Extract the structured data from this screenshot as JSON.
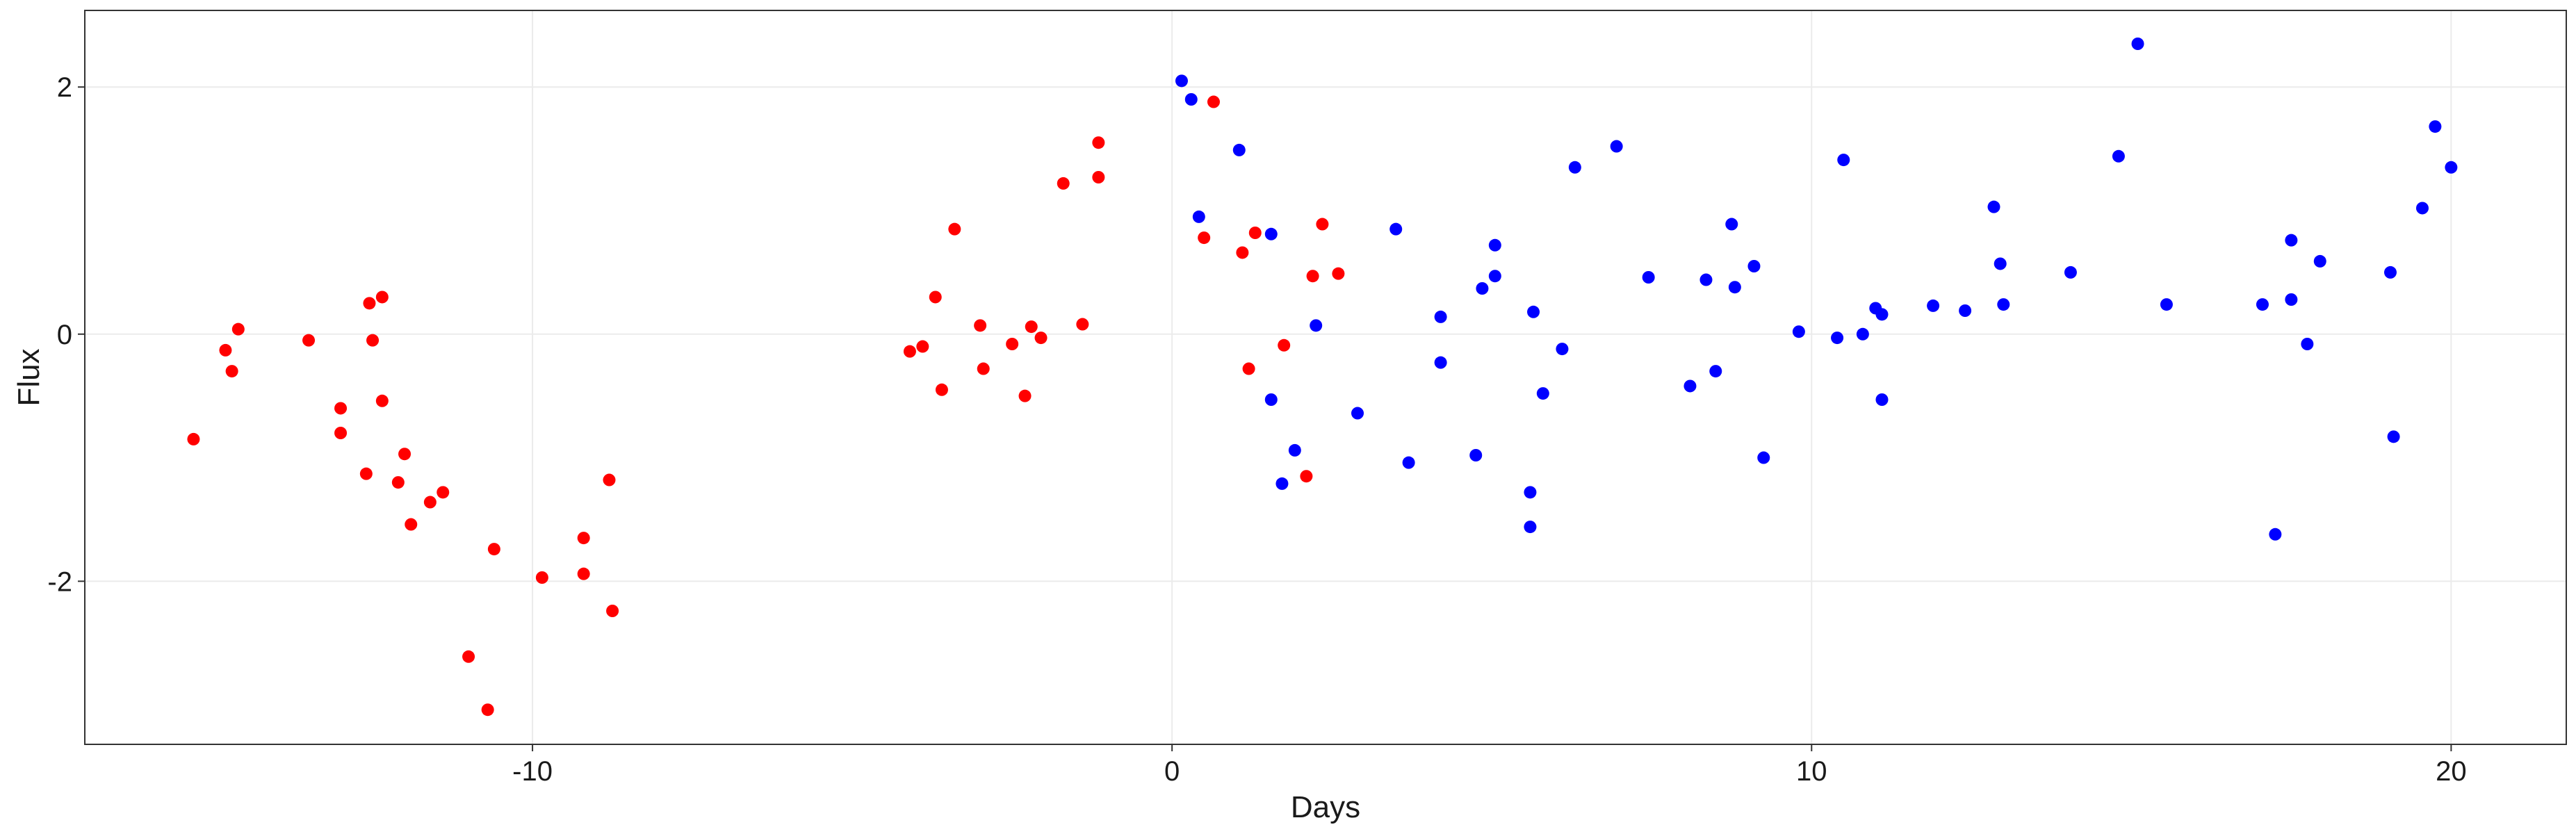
{
  "chart_data": {
    "type": "scatter",
    "title": "",
    "xlabel": "Days",
    "ylabel": "Flux",
    "xlim": [
      -17.0,
      21.8
    ],
    "ylim": [
      -3.32,
      2.62
    ],
    "x_ticks": [
      -10,
      0,
      10,
      20
    ],
    "y_ticks": [
      -2,
      0,
      2
    ],
    "x_tick_labels": [
      "-10",
      "0",
      "10",
      "20"
    ],
    "y_tick_labels": [
      "-2",
      "0",
      "2"
    ],
    "grid": true,
    "legend": "none",
    "series": [
      {
        "color": "#ff0000",
        "points": [
          [
            -15.3,
            -0.85
          ],
          [
            -14.8,
            -0.13
          ],
          [
            -14.7,
            -0.3
          ],
          [
            -14.6,
            0.04
          ],
          [
            -13.5,
            -0.05
          ],
          [
            -13.0,
            -0.6
          ],
          [
            -13.0,
            -0.8
          ],
          [
            -12.6,
            -1.13
          ],
          [
            -12.55,
            0.25
          ],
          [
            -12.5,
            -0.05
          ],
          [
            -12.35,
            0.3
          ],
          [
            -12.35,
            -0.54
          ],
          [
            -12.1,
            -1.2
          ],
          [
            -12.0,
            -0.97
          ],
          [
            -11.9,
            -1.54
          ],
          [
            -11.6,
            -1.36
          ],
          [
            -11.4,
            -1.28
          ],
          [
            -11.0,
            -2.61
          ],
          [
            -10.7,
            -3.04
          ],
          [
            -10.6,
            -1.74
          ],
          [
            -9.85,
            -1.97
          ],
          [
            -9.2,
            -1.65
          ],
          [
            -9.2,
            -1.94
          ],
          [
            -8.8,
            -1.18
          ],
          [
            -8.75,
            -2.24
          ],
          [
            -4.1,
            -0.14
          ],
          [
            -3.9,
            -0.1
          ],
          [
            -3.7,
            0.3
          ],
          [
            -3.6,
            -0.45
          ],
          [
            -3.4,
            0.85
          ],
          [
            -3.0,
            0.07
          ],
          [
            -2.95,
            -0.28
          ],
          [
            -2.5,
            -0.08
          ],
          [
            -2.3,
            -0.5
          ],
          [
            -2.2,
            0.06
          ],
          [
            -2.05,
            -0.03
          ],
          [
            -1.7,
            1.22
          ],
          [
            -1.4,
            0.08
          ],
          [
            -1.15,
            1.55
          ],
          [
            -1.15,
            1.27
          ],
          [
            0.5,
            0.78
          ],
          [
            0.65,
            1.88
          ],
          [
            1.1,
            0.66
          ],
          [
            1.2,
            -0.28
          ],
          [
            1.3,
            0.82
          ],
          [
            1.75,
            -0.09
          ],
          [
            2.1,
            -1.15
          ],
          [
            2.2,
            0.47
          ],
          [
            2.35,
            0.89
          ],
          [
            2.6,
            0.49
          ]
        ]
      },
      {
        "color": "#0000ff",
        "points": [
          [
            0.15,
            2.05
          ],
          [
            0.3,
            1.9
          ],
          [
            0.42,
            0.95
          ],
          [
            1.05,
            1.49
          ],
          [
            1.55,
            0.81
          ],
          [
            1.55,
            -0.53
          ],
          [
            1.72,
            -1.21
          ],
          [
            1.92,
            -0.94
          ],
          [
            2.25,
            0.07
          ],
          [
            2.9,
            -0.64
          ],
          [
            3.5,
            0.85
          ],
          [
            3.7,
            -1.04
          ],
          [
            4.2,
            0.14
          ],
          [
            4.2,
            -0.23
          ],
          [
            4.75,
            -0.98
          ],
          [
            4.85,
            0.37
          ],
          [
            5.05,
            0.72
          ],
          [
            5.05,
            0.47
          ],
          [
            5.6,
            -1.28
          ],
          [
            5.6,
            -1.56
          ],
          [
            5.65,
            0.18
          ],
          [
            5.8,
            -0.48
          ],
          [
            6.1,
            -0.12
          ],
          [
            6.3,
            1.35
          ],
          [
            6.95,
            1.52
          ],
          [
            7.45,
            0.46
          ],
          [
            8.1,
            -0.42
          ],
          [
            8.35,
            0.44
          ],
          [
            8.5,
            -0.3
          ],
          [
            8.75,
            0.89
          ],
          [
            8.8,
            0.38
          ],
          [
            9.1,
            0.55
          ],
          [
            9.25,
            -1.0
          ],
          [
            9.8,
            0.02
          ],
          [
            10.4,
            -0.03
          ],
          [
            10.5,
            1.41
          ],
          [
            10.8,
            0.0
          ],
          [
            11.0,
            0.21
          ],
          [
            11.1,
            0.16
          ],
          [
            11.1,
            -0.53
          ],
          [
            11.9,
            0.23
          ],
          [
            12.4,
            0.19
          ],
          [
            12.85,
            1.03
          ],
          [
            12.95,
            0.57
          ],
          [
            13.0,
            0.24
          ],
          [
            14.05,
            0.5
          ],
          [
            14.8,
            1.44
          ],
          [
            15.1,
            2.35
          ],
          [
            15.55,
            0.24
          ],
          [
            17.05,
            0.24
          ],
          [
            17.25,
            -1.62
          ],
          [
            17.5,
            0.28
          ],
          [
            17.5,
            0.76
          ],
          [
            17.75,
            -0.08
          ],
          [
            17.95,
            0.59
          ],
          [
            19.05,
            0.5
          ],
          [
            19.1,
            -0.83
          ],
          [
            19.55,
            1.02
          ],
          [
            19.75,
            1.68
          ],
          [
            20.0,
            1.35
          ]
        ]
      }
    ]
  }
}
